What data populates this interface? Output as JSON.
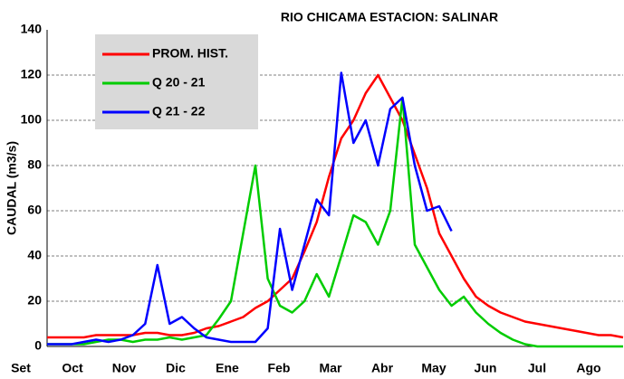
{
  "chart_data": {
    "type": "line",
    "title": "RIO CHICAMA  ESTACION:  SALINAR",
    "y_label": "CAUDAL (m3/s)",
    "categories": [
      "Set",
      null,
      null,
      null,
      "Oct",
      null,
      null,
      null,
      "Nov",
      null,
      null,
      null,
      "Dic",
      null,
      null,
      null,
      "Ene",
      null,
      null,
      null,
      "Feb",
      null,
      null,
      null,
      "Mar",
      null,
      null,
      null,
      "Abr",
      null,
      null,
      null,
      "May",
      null,
      null,
      null,
      "Jun",
      null,
      null,
      null,
      "Jul",
      null,
      null,
      null,
      "Ago",
      null,
      null,
      null
    ],
    "series": [
      {
        "name": "PROM. HIST.",
        "color": "#ff0000",
        "values": [
          4,
          4,
          4,
          4,
          5,
          5,
          5,
          5,
          6,
          6,
          5,
          5,
          6,
          8,
          9,
          11,
          13,
          17,
          20,
          25,
          30,
          42,
          55,
          75,
          92,
          100,
          112,
          120,
          110,
          100,
          85,
          70,
          50,
          40,
          30,
          22,
          18,
          15,
          13,
          11,
          10,
          9,
          8,
          7,
          6,
          5,
          5,
          4
        ]
      },
      {
        "name": "Q 20 - 21",
        "color": "#00cc00",
        "values": [
          1,
          1,
          1,
          1,
          2,
          3,
          3,
          2,
          3,
          3,
          4,
          3,
          4,
          5,
          12,
          20,
          50,
          80,
          30,
          18,
          15,
          20,
          32,
          22,
          40,
          58,
          55,
          45,
          60,
          110,
          45,
          35,
          25,
          18,
          22,
          15,
          10,
          6,
          3,
          1,
          0,
          0,
          0,
          0,
          0,
          0,
          0,
          0
        ]
      },
      {
        "name": "Q 21 - 22",
        "color": "#0000ff",
        "values": [
          1,
          1,
          1,
          2,
          3,
          2,
          3,
          5,
          10,
          36,
          10,
          13,
          8,
          4,
          3,
          2,
          2,
          2,
          8,
          52,
          25,
          45,
          65,
          58,
          121,
          90,
          100,
          80,
          105,
          110,
          80,
          60,
          62,
          51,
          null,
          null,
          null,
          null,
          null,
          null,
          null,
          null,
          null,
          null,
          null,
          null,
          null,
          null
        ]
      }
    ],
    "ylim": [
      0,
      140
    ],
    "yticks": [
      0,
      20,
      40,
      60,
      80,
      100,
      120,
      140
    ],
    "grid": true
  }
}
